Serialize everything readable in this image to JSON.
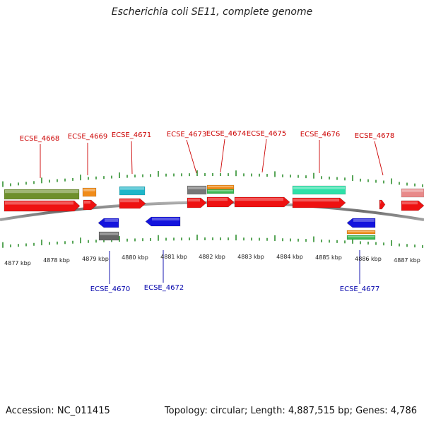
{
  "title": "Escherichia coli SE11, complete genome",
  "footer": {
    "accession": "Accession: NC_011415",
    "summary": "Topology: circular; Length: 4,887,515 bp; Genes: 4,786"
  },
  "colors": {
    "forward_label": "#cc0000",
    "reverse_label": "#0000aa",
    "tick": "#2f8f2f",
    "backbone": "#7a7a7a"
  },
  "axis": {
    "unit": "kbp",
    "ticks": [
      "4877 kbp",
      "4878 kbp",
      "4879 kbp",
      "4880 kbp",
      "4881 kbp",
      "4882 kbp",
      "4883 kbp",
      "4884 kbp",
      "4885 kbp",
      "4886 kbp",
      "4887 kbp"
    ]
  },
  "forward_labels": [
    "ECSE_4668",
    "ECSE_4669",
    "ECSE_4671",
    "ECSE_4673",
    "ECSE_4674",
    "ECSE_4675",
    "ECSE_4676",
    "ECSE_4678"
  ],
  "reverse_labels": [
    "ECSE_4670",
    "ECSE_4672",
    "ECSE_4677"
  ]
}
